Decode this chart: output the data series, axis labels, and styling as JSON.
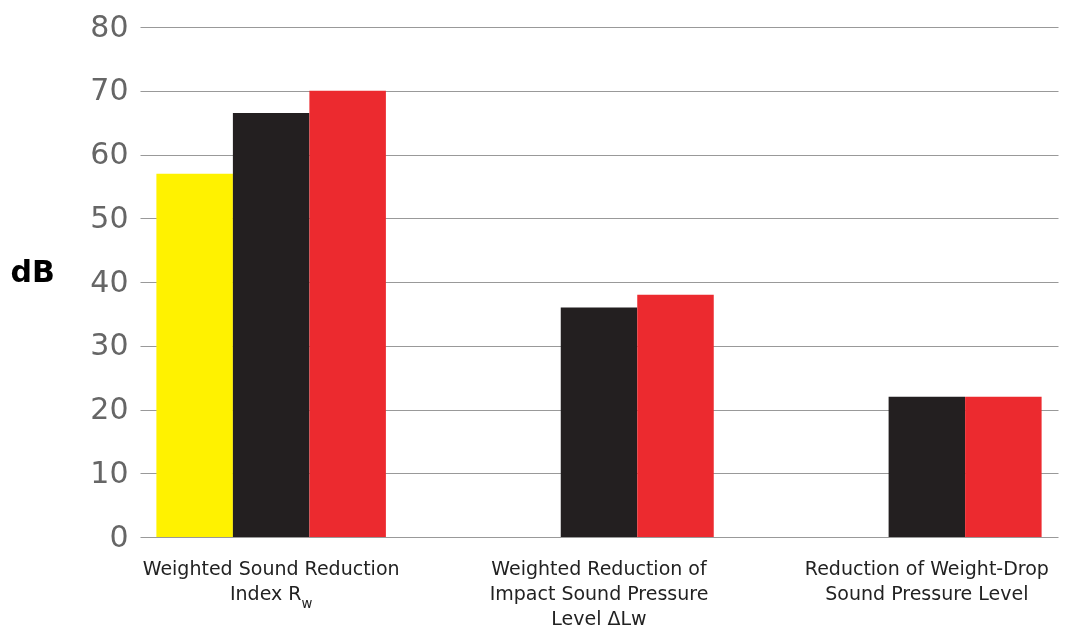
{
  "chart_data": {
    "type": "bar",
    "ylabel": "dB",
    "categories": [
      "Weighted Sound Reduction Index R$_{w}$",
      "Weighted Reduction of Impact Sound Pressure Level ΔLw",
      "Reduction of Weight-Drop Sound Pressure Level"
    ],
    "series": [
      {
        "color": "#fff200",
        "values": [
          57,
          null,
          null
        ]
      },
      {
        "color": "#231f20",
        "values": [
          66.5,
          36,
          22
        ]
      },
      {
        "color": "#ec2a2f",
        "values": [
          70,
          38,
          22
        ]
      }
    ],
    "ylim": [
      0,
      80
    ],
    "yticks": [
      0,
      10,
      20,
      30,
      40,
      50,
      60,
      70,
      80
    ],
    "grid": "y",
    "legend": false
  }
}
